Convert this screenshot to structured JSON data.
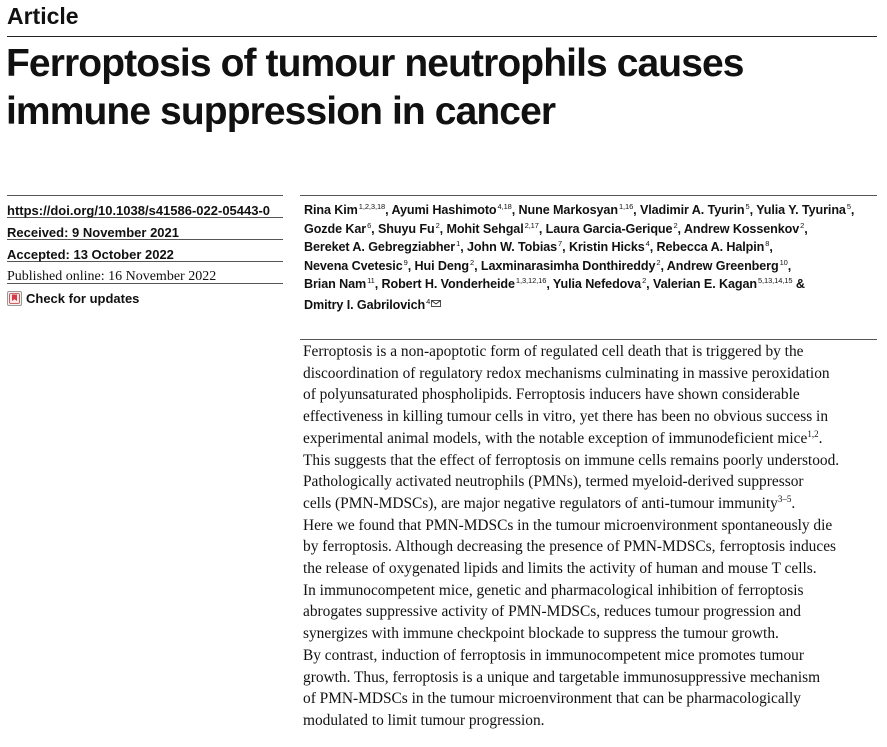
{
  "kicker": "Article",
  "title_lines": [
    "Ferroptosis of tumour neutrophils causes",
    "immune suppression in cancer"
  ],
  "meta": {
    "doi": "https://doi.org/10.1038/s41586-022-05443-0",
    "received": "Received: 9 November 2021",
    "accepted": "Accepted: 13 October 2022",
    "published": "Published online: 16 November 2022",
    "check_updates": "Check for updates"
  },
  "authors": [
    [
      {
        "name": "Rina Kim",
        "aff": "1,2,3,18",
        "sep": ", "
      },
      {
        "name": "Ayumi Hashimoto",
        "aff": "4,18",
        "sep": ", "
      },
      {
        "name": "Nune Markosyan",
        "aff": "1,16",
        "sep": ", "
      },
      {
        "name": "Vladimir A. Tyurin",
        "aff": "5",
        "sep": ", "
      },
      {
        "name": "Yulia Y. Tyurina",
        "aff": "5",
        "sep": ","
      }
    ],
    [
      {
        "name": "Gozde Kar",
        "aff": "6",
        "sep": ", "
      },
      {
        "name": "Shuyu Fu",
        "aff": "2",
        "sep": ", "
      },
      {
        "name": "Mohit Sehgal",
        "aff": "2,17",
        "sep": ", "
      },
      {
        "name": "Laura Garcia-Gerique",
        "aff": "2",
        "sep": ", "
      },
      {
        "name": "Andrew Kossenkov",
        "aff": "2",
        "sep": ","
      }
    ],
    [
      {
        "name": "Bereket A. Gebregziabher",
        "aff": "1",
        "sep": ", "
      },
      {
        "name": "John W. Tobias",
        "aff": "7",
        "sep": ", "
      },
      {
        "name": "Kristin Hicks",
        "aff": "4",
        "sep": ", "
      },
      {
        "name": "Rebecca A. Halpin",
        "aff": "8",
        "sep": ","
      }
    ],
    [
      {
        "name": "Nevena Cvetesic",
        "aff": "9",
        "sep": ", "
      },
      {
        "name": "Hui Deng",
        "aff": "2",
        "sep": ", "
      },
      {
        "name": "Laxminarasimha Donthireddy",
        "aff": "2",
        "sep": ", "
      },
      {
        "name": "Andrew Greenberg",
        "aff": "10",
        "sep": ","
      }
    ],
    [
      {
        "name": "Brian Nam",
        "aff": "11",
        "sep": ", "
      },
      {
        "name": "Robert H. Vonderheide",
        "aff": "1,3,12,16",
        "sep": ", "
      },
      {
        "name": "Yulia Nefedova",
        "aff": "2",
        "sep": ", "
      },
      {
        "name": "Valerian E. Kagan",
        "aff": "5,13,14,15",
        "sep": " &"
      }
    ],
    [
      {
        "name": "Dmitry I. Gabrilovich",
        "aff": "4",
        "sep": ""
      }
    ]
  ],
  "abstract_lines": [
    {
      "text": "Ferroptosis is a non-apoptotic form of regulated cell death that is triggered by the"
    },
    {
      "text": "discoordination of regulatory redox mechanisms culminating in massive peroxidation"
    },
    {
      "text": "of polyunsaturated phospholipids. Ferroptosis inducers have shown considerable"
    },
    {
      "text": "effectiveness in killing tumour cells in vitro, yet there has been no obvious success in"
    },
    {
      "text": "experimental animal models, with the notable exception of immunodeficient mice",
      "sup": "1,2",
      "after": "."
    },
    {
      "text": "This suggests that the effect of ferroptosis on immune cells remains poorly understood."
    },
    {
      "text": "Pathologically activated neutrophils (PMNs), termed myeloid-derived suppressor"
    },
    {
      "text": "cells (PMN-MDSCs), are major negative regulators of anti-tumour immunity",
      "sup": "3–5",
      "after": "."
    },
    {
      "text": "Here we found that PMN-MDSCs in the tumour microenvironment spontaneously die"
    },
    {
      "text": "by ferroptosis. Although decreasing the presence of PMN-MDSCs, ferroptosis induces"
    },
    {
      "text": "the release of oxygenated lipids and limits the activity of human and mouse T cells."
    },
    {
      "text": "In immunocompetent mice, genetic and pharmacological inhibition of ferroptosis"
    },
    {
      "text": "abrogates suppressive activity of PMN-MDSCs, reduces tumour progression and"
    },
    {
      "text": "synergizes with immune checkpoint blockade to suppress the tumour growth."
    },
    {
      "text": "By contrast, induction of ferroptosis in immunocompetent mice promotes tumour"
    },
    {
      "text": "growth. Thus, ferroptosis is a unique and targetable immunosuppressive mechanism"
    },
    {
      "text": "of PMN-MDSCs in the tumour microenvironment that can be pharmacologically"
    },
    {
      "text": "modulated to limit tumour progression."
    }
  ]
}
